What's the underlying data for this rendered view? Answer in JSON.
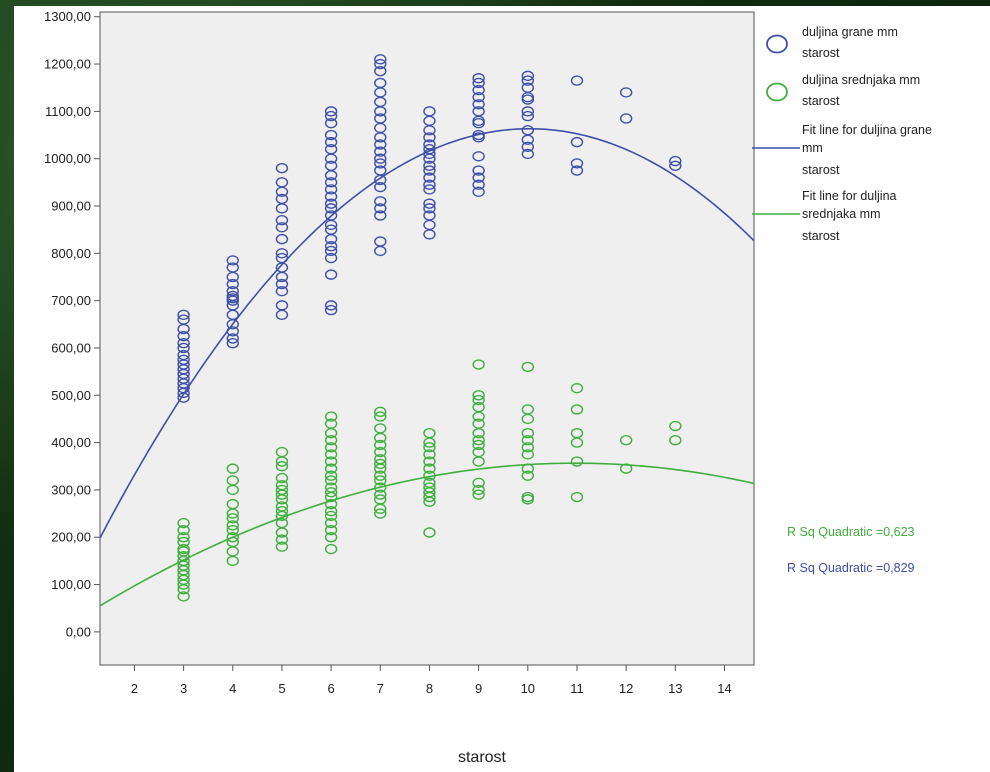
{
  "chart_data": {
    "type": "scatter",
    "xlabel": "starost",
    "ylabel": "",
    "xlim": [
      1.3,
      14.6
    ],
    "ylim": [
      -70,
      1310
    ],
    "x_ticks": [
      "2",
      "3",
      "4",
      "5",
      "6",
      "7",
      "8",
      "9",
      "10",
      "11",
      "12",
      "13",
      "14"
    ],
    "y_ticks": [
      "0,00",
      "100,00",
      "200,00",
      "300,00",
      "400,00",
      "500,00",
      "600,00",
      "700,00",
      "800,00",
      "900,00",
      "1000,00",
      "1100,00",
      "1200,00",
      "1300,00"
    ],
    "series": [
      {
        "name": "duljina grane mm starost",
        "color": "#3e4fa8",
        "points": [
          [
            3,
            495
          ],
          [
            3,
            505
          ],
          [
            3,
            515
          ],
          [
            3,
            525
          ],
          [
            3,
            535
          ],
          [
            3,
            545
          ],
          [
            3,
            555
          ],
          [
            3,
            565
          ],
          [
            3,
            575
          ],
          [
            3,
            585
          ],
          [
            3,
            600
          ],
          [
            3,
            610
          ],
          [
            3,
            625
          ],
          [
            3,
            640
          ],
          [
            3,
            660
          ],
          [
            3,
            670
          ],
          [
            4,
            610
          ],
          [
            4,
            620
          ],
          [
            4,
            635
          ],
          [
            4,
            650
          ],
          [
            4,
            670
          ],
          [
            4,
            690
          ],
          [
            4,
            700
          ],
          [
            4,
            705
          ],
          [
            4,
            710
          ],
          [
            4,
            720
          ],
          [
            4,
            735
          ],
          [
            4,
            750
          ],
          [
            4,
            770
          ],
          [
            4,
            785
          ],
          [
            5,
            670
          ],
          [
            5,
            690
          ],
          [
            5,
            720
          ],
          [
            5,
            735
          ],
          [
            5,
            750
          ],
          [
            5,
            770
          ],
          [
            5,
            790
          ],
          [
            5,
            800
          ],
          [
            5,
            830
          ],
          [
            5,
            855
          ],
          [
            5,
            870
          ],
          [
            5,
            895
          ],
          [
            5,
            915
          ],
          [
            5,
            930
          ],
          [
            5,
            950
          ],
          [
            5,
            980
          ],
          [
            6,
            680
          ],
          [
            6,
            690
          ],
          [
            6,
            755
          ],
          [
            6,
            790
          ],
          [
            6,
            805
          ],
          [
            6,
            815
          ],
          [
            6,
            830
          ],
          [
            6,
            850
          ],
          [
            6,
            860
          ],
          [
            6,
            880
          ],
          [
            6,
            895
          ],
          [
            6,
            905
          ],
          [
            6,
            920
          ],
          [
            6,
            935
          ],
          [
            6,
            950
          ],
          [
            6,
            965
          ],
          [
            6,
            985
          ],
          [
            6,
            1000
          ],
          [
            6,
            1020
          ],
          [
            6,
            1035
          ],
          [
            6,
            1050
          ],
          [
            6,
            1075
          ],
          [
            6,
            1090
          ],
          [
            6,
            1100
          ],
          [
            7,
            805
          ],
          [
            7,
            825
          ],
          [
            7,
            880
          ],
          [
            7,
            895
          ],
          [
            7,
            910
          ],
          [
            7,
            940
          ],
          [
            7,
            955
          ],
          [
            7,
            975
          ],
          [
            7,
            990
          ],
          [
            7,
            1000
          ],
          [
            7,
            1015
          ],
          [
            7,
            1030
          ],
          [
            7,
            1045
          ],
          [
            7,
            1065
          ],
          [
            7,
            1085
          ],
          [
            7,
            1100
          ],
          [
            7,
            1120
          ],
          [
            7,
            1140
          ],
          [
            7,
            1160
          ],
          [
            7,
            1185
          ],
          [
            7,
            1200
          ],
          [
            7,
            1210
          ],
          [
            8,
            840
          ],
          [
            8,
            860
          ],
          [
            8,
            880
          ],
          [
            8,
            895
          ],
          [
            8,
            905
          ],
          [
            8,
            935
          ],
          [
            8,
            945
          ],
          [
            8,
            960
          ],
          [
            8,
            975
          ],
          [
            8,
            985
          ],
          [
            8,
            1000
          ],
          [
            8,
            1010
          ],
          [
            8,
            1020
          ],
          [
            8,
            1030
          ],
          [
            8,
            1045
          ],
          [
            8,
            1060
          ],
          [
            8,
            1080
          ],
          [
            8,
            1100
          ],
          [
            9,
            930
          ],
          [
            9,
            945
          ],
          [
            9,
            960
          ],
          [
            9,
            975
          ],
          [
            9,
            1005
          ],
          [
            9,
            1045
          ],
          [
            9,
            1050
          ],
          [
            9,
            1075
          ],
          [
            9,
            1080
          ],
          [
            9,
            1100
          ],
          [
            9,
            1115
          ],
          [
            9,
            1130
          ],
          [
            9,
            1145
          ],
          [
            9,
            1160
          ],
          [
            9,
            1170
          ],
          [
            10,
            1010
          ],
          [
            10,
            1025
          ],
          [
            10,
            1040
          ],
          [
            10,
            1060
          ],
          [
            10,
            1090
          ],
          [
            10,
            1100
          ],
          [
            10,
            1125
          ],
          [
            10,
            1130
          ],
          [
            10,
            1150
          ],
          [
            10,
            1165
          ],
          [
            10,
            1175
          ],
          [
            11,
            975
          ],
          [
            11,
            990
          ],
          [
            11,
            1035
          ],
          [
            11,
            1165
          ],
          [
            12,
            1085
          ],
          [
            12,
            1140
          ],
          [
            13,
            985
          ],
          [
            13,
            995
          ]
        ]
      },
      {
        "name": "duljina srednjaka mm starost",
        "color": "#3fae3f",
        "points": [
          [
            3,
            75
          ],
          [
            3,
            90
          ],
          [
            3,
            100
          ],
          [
            3,
            110
          ],
          [
            3,
            120
          ],
          [
            3,
            130
          ],
          [
            3,
            140
          ],
          [
            3,
            150
          ],
          [
            3,
            160
          ],
          [
            3,
            170
          ],
          [
            3,
            175
          ],
          [
            3,
            190
          ],
          [
            3,
            200
          ],
          [
            3,
            215
          ],
          [
            3,
            230
          ],
          [
            4,
            150
          ],
          [
            4,
            170
          ],
          [
            4,
            190
          ],
          [
            4,
            200
          ],
          [
            4,
            215
          ],
          [
            4,
            225
          ],
          [
            4,
            240
          ],
          [
            4,
            250
          ],
          [
            4,
            270
          ],
          [
            4,
            300
          ],
          [
            4,
            320
          ],
          [
            4,
            345
          ],
          [
            5,
            180
          ],
          [
            5,
            195
          ],
          [
            5,
            210
          ],
          [
            5,
            230
          ],
          [
            5,
            245
          ],
          [
            5,
            255
          ],
          [
            5,
            265
          ],
          [
            5,
            280
          ],
          [
            5,
            290
          ],
          [
            5,
            300
          ],
          [
            5,
            310
          ],
          [
            5,
            325
          ],
          [
            5,
            350
          ],
          [
            5,
            360
          ],
          [
            5,
            380
          ],
          [
            6,
            175
          ],
          [
            6,
            200
          ],
          [
            6,
            215
          ],
          [
            6,
            230
          ],
          [
            6,
            245
          ],
          [
            6,
            255
          ],
          [
            6,
            270
          ],
          [
            6,
            285
          ],
          [
            6,
            295
          ],
          [
            6,
            305
          ],
          [
            6,
            320
          ],
          [
            6,
            330
          ],
          [
            6,
            345
          ],
          [
            6,
            360
          ],
          [
            6,
            375
          ],
          [
            6,
            390
          ],
          [
            6,
            405
          ],
          [
            6,
            420
          ],
          [
            6,
            440
          ],
          [
            6,
            455
          ],
          [
            7,
            250
          ],
          [
            7,
            260
          ],
          [
            7,
            280
          ],
          [
            7,
            290
          ],
          [
            7,
            305
          ],
          [
            7,
            320
          ],
          [
            7,
            330
          ],
          [
            7,
            345
          ],
          [
            7,
            355
          ],
          [
            7,
            365
          ],
          [
            7,
            380
          ],
          [
            7,
            395
          ],
          [
            7,
            410
          ],
          [
            7,
            430
          ],
          [
            7,
            455
          ],
          [
            7,
            465
          ],
          [
            8,
            210
          ],
          [
            8,
            275
          ],
          [
            8,
            285
          ],
          [
            8,
            295
          ],
          [
            8,
            305
          ],
          [
            8,
            315
          ],
          [
            8,
            330
          ],
          [
            8,
            345
          ],
          [
            8,
            360
          ],
          [
            8,
            375
          ],
          [
            8,
            390
          ],
          [
            8,
            400
          ],
          [
            8,
            420
          ],
          [
            9,
            290
          ],
          [
            9,
            300
          ],
          [
            9,
            315
          ],
          [
            9,
            360
          ],
          [
            9,
            380
          ],
          [
            9,
            395
          ],
          [
            9,
            405
          ],
          [
            9,
            420
          ],
          [
            9,
            440
          ],
          [
            9,
            455
          ],
          [
            9,
            475
          ],
          [
            9,
            490
          ],
          [
            9,
            500
          ],
          [
            9,
            565
          ],
          [
            10,
            280
          ],
          [
            10,
            285
          ],
          [
            10,
            330
          ],
          [
            10,
            345
          ],
          [
            10,
            375
          ],
          [
            10,
            390
          ],
          [
            10,
            405
          ],
          [
            10,
            420
          ],
          [
            10,
            450
          ],
          [
            10,
            470
          ],
          [
            10,
            560
          ],
          [
            11,
            285
          ],
          [
            11,
            360
          ],
          [
            11,
            400
          ],
          [
            11,
            420
          ],
          [
            11,
            470
          ],
          [
            11,
            515
          ],
          [
            12,
            345
          ],
          [
            12,
            405
          ],
          [
            13,
            405
          ],
          [
            13,
            435
          ]
        ]
      }
    ],
    "fit_lines": [
      {
        "name": "Fit line for duljina grane mm starost",
        "color": "#3e4fa8",
        "type": "quadratic",
        "coefficients": [
          -78.15,
          227.54,
          -11.34
        ],
        "r_squared_label": "R Sq Quadratic =0,829"
      },
      {
        "name": "Fit line for duljina srednjaka mm starost",
        "color": "#3fae3f",
        "type": "quadratic",
        "coefficients": [
          -31.5,
          70.8,
          -3.23
        ],
        "r_squared_label": "R Sq Quadratic =0,623"
      }
    ],
    "legend": {
      "placement": "right",
      "items": [
        {
          "kind": "marker",
          "color": "#3e4fa8",
          "lines": [
            "duljina grane mm",
            "starost"
          ]
        },
        {
          "kind": "marker",
          "color": "#3fae3f",
          "lines": [
            "duljina srednjaka mm",
            "starost"
          ]
        },
        {
          "kind": "line",
          "color": "#3e4fa8",
          "lines": [
            "Fit line for duljina grane",
            "mm",
            "starost"
          ]
        },
        {
          "kind": "line",
          "color": "#3fae3f",
          "lines": [
            "Fit line for duljina",
            "srednjaka mm",
            "starost"
          ]
        }
      ]
    },
    "annotations": [
      {
        "text": "R Sq Quadratic =0,623",
        "color": "#3fae3f"
      },
      {
        "text": "R Sq Quadratic =0,829",
        "color": "#3e4fa8"
      }
    ],
    "grid": false
  }
}
